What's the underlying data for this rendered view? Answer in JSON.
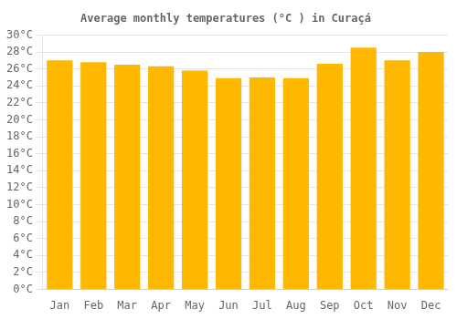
{
  "chart_data": {
    "type": "bar",
    "title": "Average monthly temperatures (°C ) in Curaçá",
    "categories": [
      "Jan",
      "Feb",
      "Mar",
      "Apr",
      "May",
      "Jun",
      "Jul",
      "Aug",
      "Sep",
      "Oct",
      "Nov",
      "Dec"
    ],
    "values": [
      27.0,
      26.8,
      26.5,
      26.3,
      25.8,
      24.9,
      25.0,
      24.9,
      26.6,
      28.5,
      27.0,
      28.0
    ],
    "color": "#FFB800",
    "ylim": [
      0,
      30
    ],
    "yticks": [
      {
        "value": 0,
        "label": "0°C"
      },
      {
        "value": 2,
        "label": "2°C"
      },
      {
        "value": 4,
        "label": "4°C"
      },
      {
        "value": 6,
        "label": "6°C"
      },
      {
        "value": 8,
        "label": "8°C"
      },
      {
        "value": 10,
        "label": "10°C"
      },
      {
        "value": 12,
        "label": "12°C"
      },
      {
        "value": 14,
        "label": "14°C"
      },
      {
        "value": 16,
        "label": "16°C"
      },
      {
        "value": 18,
        "label": "18°C"
      },
      {
        "value": 20,
        "label": "20°C"
      },
      {
        "value": 22,
        "label": "22°C"
      },
      {
        "value": 24,
        "label": "24°C"
      },
      {
        "value": 26,
        "label": "26°C"
      },
      {
        "value": 28,
        "label": "28°C"
      },
      {
        "value": 30,
        "label": "30°C"
      }
    ],
    "grid": true
  }
}
